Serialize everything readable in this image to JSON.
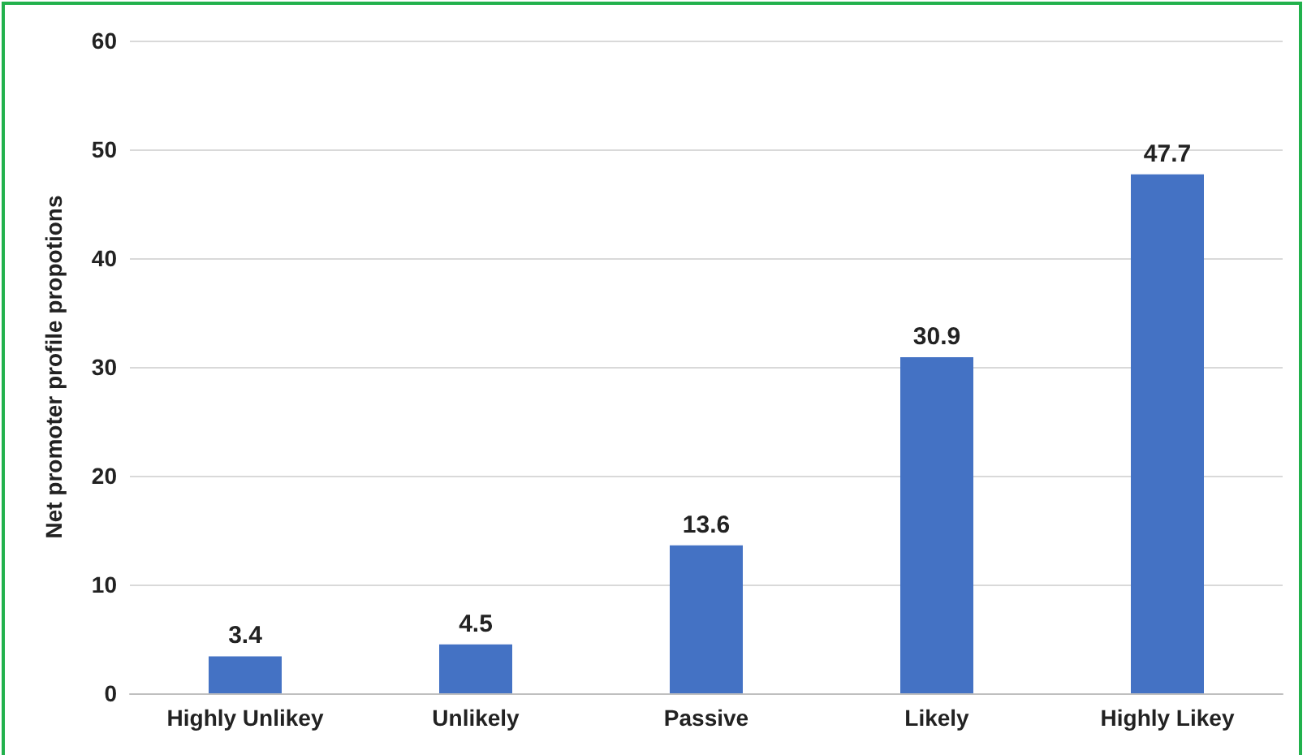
{
  "chart_data": {
    "type": "bar",
    "ylabel": "Net promoter profile propotions",
    "categories": [
      "Highly Unlikey",
      "Unlikely",
      "Passive",
      "Likely",
      "Highly Likey"
    ],
    "values": [
      3.4,
      4.5,
      13.6,
      30.9,
      47.7
    ],
    "color": "#4472c4",
    "ylim": [
      0,
      60
    ],
    "yticks": [
      0,
      10,
      20,
      30,
      40,
      50,
      60
    ],
    "grid": "y",
    "data_labels": true
  }
}
